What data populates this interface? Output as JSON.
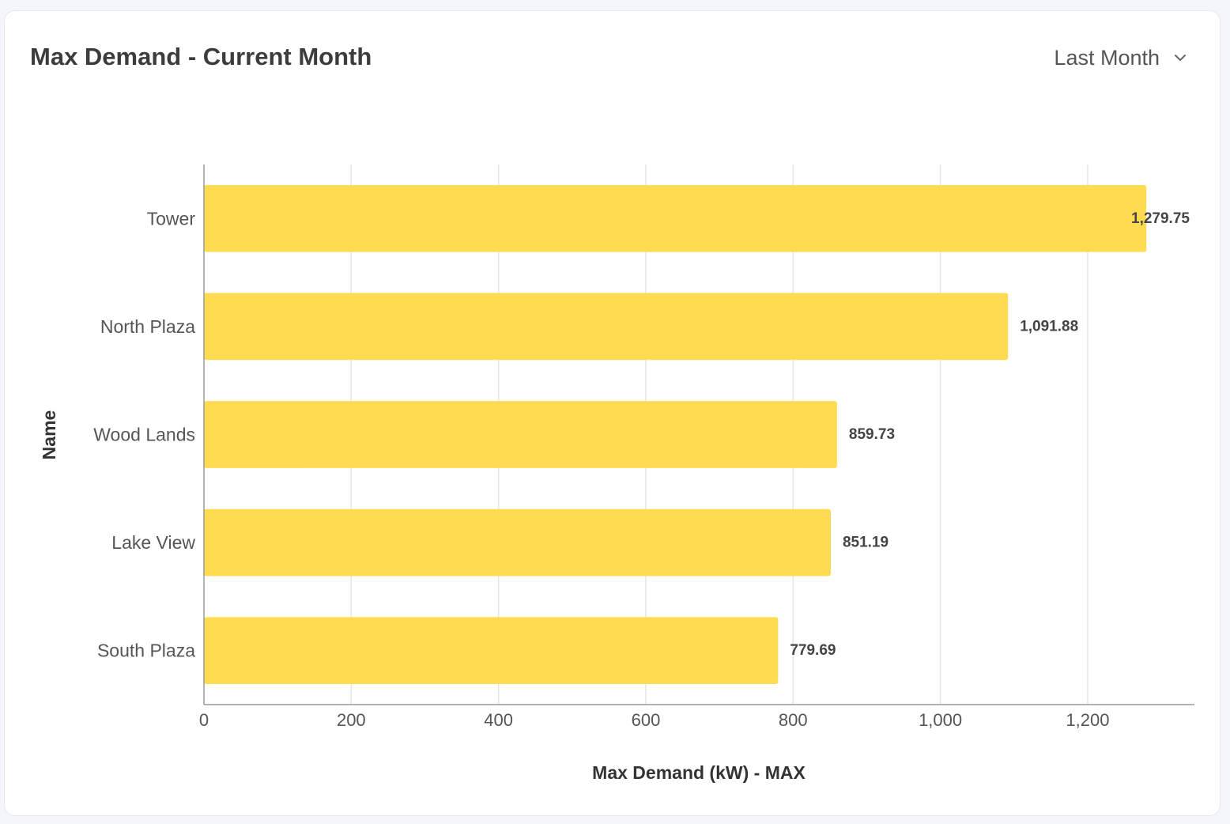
{
  "header": {
    "title": "Max Demand - Current Month",
    "period_label": "Last Month",
    "period_icon": "chevron-down-icon"
  },
  "colors": {
    "bar": "#ffdb52",
    "grid": "#e3e5ea",
    "axis": "#9a9a9a"
  },
  "chart_data": {
    "type": "bar",
    "orientation": "horizontal",
    "categories": [
      "Tower",
      "North Plaza",
      "Wood Lands",
      "Lake View",
      "South Plaza"
    ],
    "values": [
      1279.75,
      1091.88,
      859.73,
      851.19,
      779.69
    ],
    "value_labels": [
      "1,279.75",
      "1,091.88",
      "859.73",
      "851.19",
      "779.69"
    ],
    "xlabel": "Max Demand (kW) - MAX",
    "ylabel": "Name",
    "xlim": [
      0,
      1345
    ],
    "xticks": [
      0,
      200,
      400,
      600,
      800,
      1000,
      1200
    ],
    "xtick_labels": [
      "0",
      "200",
      "400",
      "600",
      "800",
      "1,000",
      "1,200"
    ],
    "grid": true,
    "legend": "none"
  }
}
